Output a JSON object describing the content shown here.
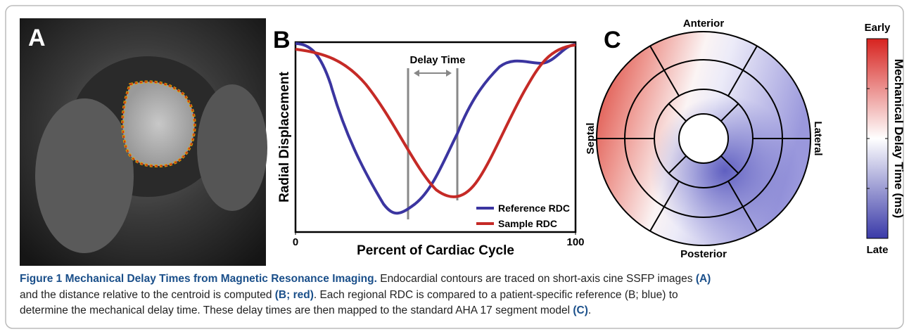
{
  "panels": {
    "a": {
      "label": "A"
    },
    "b": {
      "label": "B",
      "annotation": "Delay Time",
      "y_label": "Radial Displacement",
      "x_label": "Percent of Cardiac Cycle",
      "xlim": [
        0,
        100
      ],
      "xticks": [
        0,
        100
      ],
      "legend": [
        "Reference RDC",
        "Sample RDC"
      ]
    },
    "c": {
      "label": "C",
      "top": "Anterior",
      "bottom": "Posterior",
      "left": "Septal",
      "right": "Lateral",
      "colorbar": {
        "top": "Early",
        "bottom": "Late",
        "title": "Mechanical Delay Time (ms)"
      }
    }
  },
  "caption": {
    "title": "Figure 1 Mechanical Delay Times from Magnetic Resonance Imaging.",
    "lines": [
      [
        " Endocardial contours are traced on short-axis cine SSFP images ",
        "(A)"
      ],
      [
        "and the distance relative to the centroid is computed ",
        "(B; red)",
        ". Each regional RDC is compared to a patient-specific reference (B; blue) to"
      ],
      [
        "determine the mechanical delay time. These delay times are then mapped to the standard AHA 17 segment model ",
        "(C)",
        "."
      ]
    ]
  }
}
